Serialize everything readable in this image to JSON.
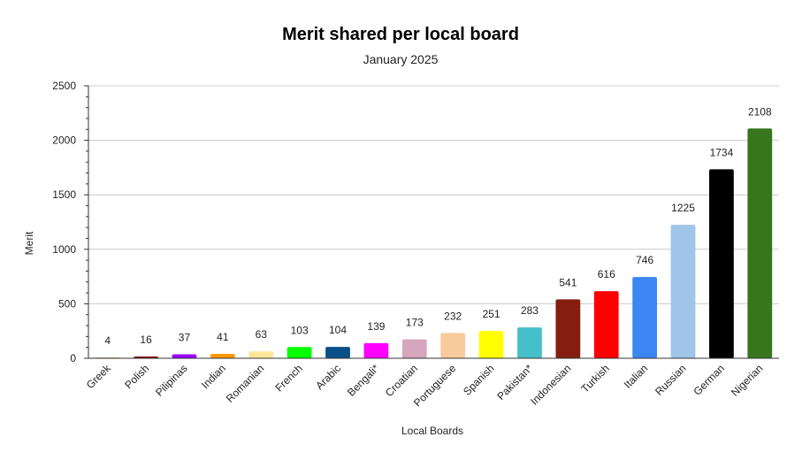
{
  "chart_data": {
    "type": "bar",
    "title": "Merit shared per local board",
    "subtitle": "January 2025",
    "xlabel": "Local Boards",
    "ylabel": "Merit",
    "ylim": [
      0,
      2500
    ],
    "yticks": [
      0,
      500,
      1000,
      1500,
      2000,
      2500
    ],
    "grid": true,
    "legend": "none",
    "categories": [
      "Greek",
      "Polish",
      "Pilipinas",
      "Indian",
      "Romanian",
      "French",
      "Arabic",
      "Bengali*",
      "Croatian",
      "Portuguese",
      "Spanish",
      "Pakistan*",
      "Indonesian",
      "Turkish",
      "Italian",
      "Russian",
      "German",
      "Nigerian"
    ],
    "values": [
      4,
      16,
      37,
      41,
      63,
      103,
      104,
      139,
      173,
      232,
      251,
      283,
      541,
      616,
      746,
      1225,
      1734,
      2108
    ],
    "colors": [
      "#cc7a00",
      "#7a1010",
      "#9b00ff",
      "#ff9900",
      "#ffe599",
      "#00ff00",
      "#0b4f8a",
      "#ff00ff",
      "#d5a6bd",
      "#f9cb9c",
      "#ffff00",
      "#45bfc8",
      "#851e0e",
      "#ff0000",
      "#3c85f5",
      "#9fc5e8",
      "#000000",
      "#38761d"
    ]
  }
}
